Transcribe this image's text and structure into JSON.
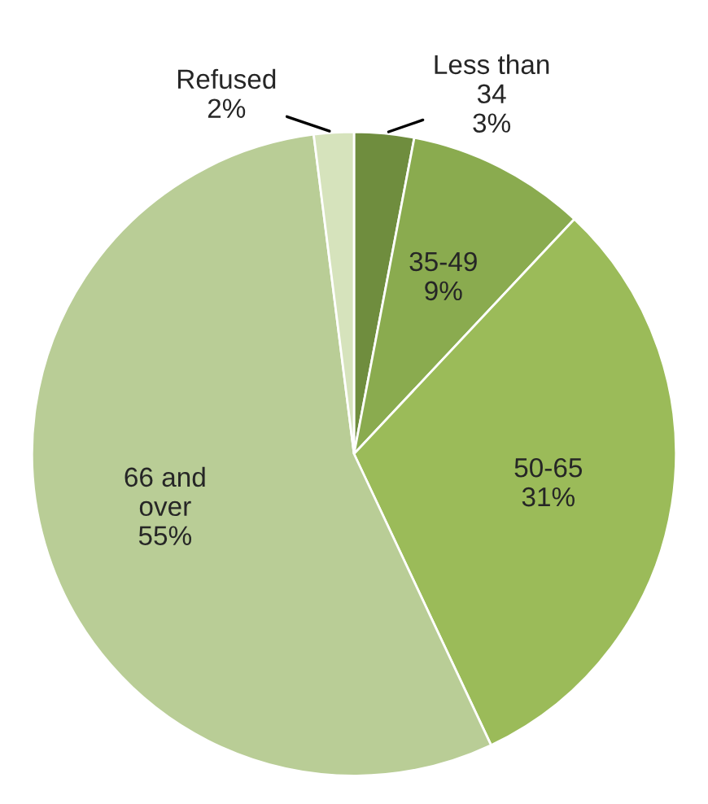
{
  "chart_data": {
    "type": "pie",
    "categories": [
      "Less than\n34",
      "35-49",
      "50-65",
      "66 and\nover",
      "Refused"
    ],
    "values": [
      3,
      9,
      31,
      55,
      2
    ],
    "colors": [
      "#6f8d3e",
      "#8aab4f",
      "#9bbb59",
      "#b9cd96",
      "#d6e3bc"
    ],
    "value_labels": [
      "3%",
      "9%",
      "31%",
      "55%",
      "2%"
    ],
    "legend": false
  }
}
